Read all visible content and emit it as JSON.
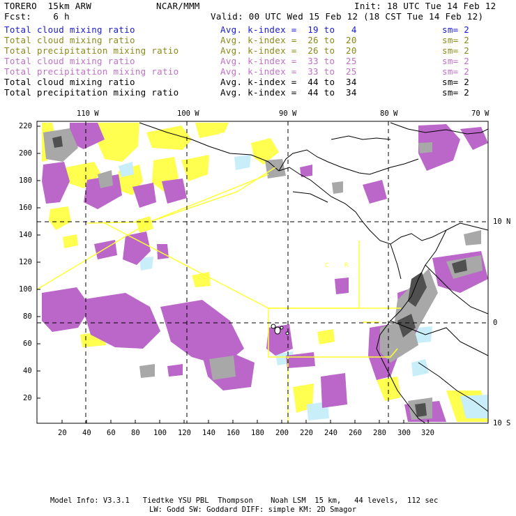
{
  "header": {
    "title": "TORERO  15km ARW",
    "org": "NCAR/MMM",
    "init": "Init: 18 UTC Tue 14 Feb 12",
    "fcst": "Fcst:    6 h",
    "valid": "Valid: 00 UTC Wed 15 Feb 12 (18 CST Tue 14 Feb 12)"
  },
  "legend": [
    {
      "field": "Total cloud mixing ratio",
      "kindex": "Avg. k-index =  19 to   4",
      "sm": "sm= 2",
      "color": "#1a1ad6"
    },
    {
      "field": "Total cloud mixing ratio",
      "kindex": "Avg. k-index =  26 to  20",
      "sm": "sm= 2",
      "color": "#8a8a1a"
    },
    {
      "field": "Total precipitation mixing ratio",
      "kindex": "Avg. k-index =  26 to  20",
      "sm": "sm= 2",
      "color": "#8a8a1a"
    },
    {
      "field": "Total cloud mixing ratio",
      "kindex": "Avg. k-index =  33 to  25",
      "sm": "sm= 2",
      "color": "#c070c8"
    },
    {
      "field": "Total precipitation mixing ratio",
      "kindex": "Avg. k-index =  33 to  25",
      "sm": "sm= 2",
      "color": "#c070c8"
    },
    {
      "field": "Total cloud mixing ratio",
      "kindex": "Avg. k-index =  44 to  34",
      "sm": "sm= 2",
      "color": "#000000"
    },
    {
      "field": "Total precipitation mixing ratio",
      "kindex": "Avg. k-index =  44 to  34",
      "sm": "sm= 2",
      "color": "#000000"
    }
  ],
  "map": {
    "lon_labels": [
      "110 W",
      "100 W",
      "90 W",
      "80 W",
      "70 W"
    ],
    "lat_labels": [
      "10 N",
      "0",
      "10 S"
    ],
    "x_ticks": [
      "20",
      "40",
      "60",
      "80",
      "100",
      "120",
      "140",
      "160",
      "180",
      "200",
      "220",
      "240",
      "260",
      "280",
      "300",
      "320"
    ],
    "y_ticks": [
      "220",
      "200",
      "180",
      "160",
      "140",
      "120",
      "100",
      "80",
      "60",
      "40",
      "20"
    ],
    "region_labels": [
      "C",
      "R"
    ],
    "colors": {
      "yellow": "#ffff50",
      "lightblue": "#c8eefa",
      "purple": "#bb66c9",
      "gray": "#a8a8a8",
      "darkgray": "#505050",
      "boundary": "#ffff33"
    }
  },
  "footer": {
    "line1": "Model Info: V3.3.1   Tiedtke YSU PBL  Thompson    Noah LSM  15 km,   44 levels,  112 sec",
    "line2": "LW: Godd SW: Goddard DIFF: simple KM: 2D Smagor"
  }
}
